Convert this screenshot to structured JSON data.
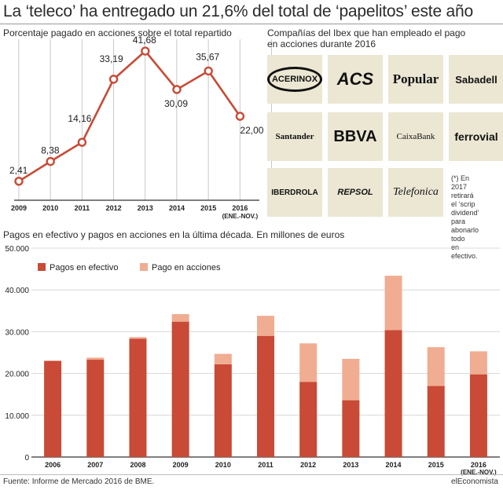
{
  "title": "La ‘teleco’ ha entregado un 21,6% del total de ‘papelitos’ este año",
  "colors": {
    "red": "#c94a36",
    "pink": "#f0ad92",
    "tile": "#ece7d3",
    "axis": "#333333"
  },
  "line_chart": {
    "subtitle": "Porcentaje pagado en acciones sobre el total repartido"
  },
  "logos": {
    "subtitle_line1": "Compañías del Ibex que han empleado el pago",
    "subtitle_line2": "en acciones durante 2016",
    "tiles": [
      {
        "name": "ACERINOX"
      },
      {
        "name": "ACS"
      },
      {
        "name": "Popular"
      },
      {
        "name": "Sabadell"
      },
      {
        "name": "Santander"
      },
      {
        "name": "BBVA"
      },
      {
        "name": "CaixaBank"
      },
      {
        "name": "ferrovial"
      },
      {
        "name": "IBERDROLA"
      },
      {
        "name": "REPSOL"
      },
      {
        "name": "Telefonica"
      }
    ],
    "note": [
      "(*) En 2017",
      "retirará el ‘scrip",
      "dividend’ para",
      "abonarlo todo",
      "en efectivo."
    ]
  },
  "bar_chart": {
    "subtitle": "Pagos en efectivo y pagos en acciones en la última década. En millones de euros"
  },
  "footer": {
    "source": "Fuente: Informe de Mercado 2016 de BME.",
    "brand": "elEconomista"
  },
  "chart_data": [
    {
      "type": "line",
      "x": [
        "2009",
        "2010",
        "2011",
        "2012",
        "2013",
        "2014",
        "2015",
        "2016"
      ],
      "x_sub": [
        "",
        "",
        "",
        "",
        "",
        "",
        "",
        "(ENE.-NOV.)"
      ],
      "series": [
        {
          "values": [
            2.41,
            8.38,
            14.16,
            33.19,
            41.68,
            30.09,
            35.67,
            22.0
          ],
          "labels": [
            "2,41",
            "8,38",
            "14,16",
            "33,19",
            "41,68",
            "30,09",
            "35,67",
            "22,00"
          ]
        }
      ],
      "ylim": [
        0,
        45
      ]
    },
    {
      "type": "bar",
      "stacked": true,
      "categories": [
        "2006",
        "2007",
        "2008",
        "2009",
        "2010",
        "2011",
        "2012",
        "2013",
        "2014",
        "2015",
        "2016"
      ],
      "categories_sub": [
        "",
        "",
        "",
        "",
        "",
        "",
        "",
        "",
        "",
        "",
        "(ENE.-NOV.)"
      ],
      "series": [
        {
          "name": "Pagos en efectivo",
          "values": [
            23000,
            23300,
            28300,
            32400,
            22200,
            29000,
            18000,
            13600,
            30400,
            17000,
            19800
          ]
        },
        {
          "name": "Pago en acciones",
          "values": [
            100,
            500,
            400,
            1800,
            2500,
            4800,
            9200,
            9900,
            13000,
            9300,
            5500
          ]
        }
      ],
      "yticks": [
        0,
        10000,
        20000,
        30000,
        40000,
        50000
      ],
      "ytick_labels": [
        "0",
        "10.000",
        "20.000",
        "30.000",
        "40.000",
        "50.000"
      ],
      "ylim": [
        0,
        50000
      ],
      "grid": true,
      "legend": "top-left"
    }
  ]
}
